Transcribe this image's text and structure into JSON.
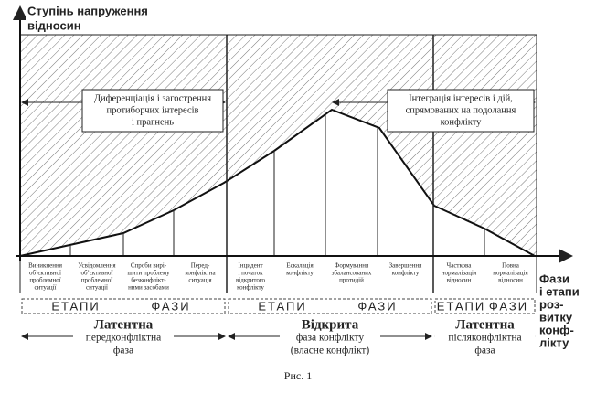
{
  "axis": {
    "y_label": [
      "Ступінь напруження",
      "відносин"
    ],
    "x_label": [
      "Фази",
      "і етапи",
      "роз-",
      "витку",
      "конф-",
      "лікту"
    ]
  },
  "annotations": [
    {
      "lines": [
        "Диференціація і загострення",
        "протиборчих інтересів",
        "і прагнень"
      ]
    },
    {
      "lines": [
        "Інтеграція інтересів і дій,",
        "спрямованих на подолання",
        "конфлікту"
      ]
    }
  ],
  "stages": [
    {
      "lines": [
        "Виникнення",
        "об’єктивної",
        "проблемної",
        "ситуації"
      ]
    },
    {
      "lines": [
        "Усвідомлення",
        "об’єктивної",
        "проблемної",
        "ситуації"
      ]
    },
    {
      "lines": [
        "Спроби вирі-",
        "шити проблему",
        "безконфлікт-",
        "ними засобами"
      ]
    },
    {
      "lines": [
        "Перед-",
        "конфліктна",
        "ситуація"
      ]
    },
    {
      "lines": [
        "Інцидент",
        "і початок",
        "відкритого",
        "конфлікту"
      ]
    },
    {
      "lines": [
        "Ескалація",
        "конфлікту"
      ]
    },
    {
      "lines": [
        "Формування",
        "збалансованих",
        "протидій"
      ]
    },
    {
      "lines": [
        "Завершення",
        "конфлікту"
      ]
    },
    {
      "lines": [
        "Часткова",
        "нормалізація",
        "відносин"
      ]
    },
    {
      "lines": [
        "Повна",
        "нормалізація",
        "відносин"
      ]
    }
  ],
  "phases": [
    {
      "band": [
        "ЕТАПИ",
        "ФАЗИ"
      ],
      "name": "Латентна",
      "description": [
        "передконфліктна",
        "фаза"
      ]
    },
    {
      "band": [
        "ЕТАПИ",
        "ФАЗИ"
      ],
      "name": "Відкрита",
      "description": [
        "фаза конфлікту",
        "(власне конфлікт)"
      ]
    },
    {
      "band": [
        "ЕТАПИ",
        "ФАЗИ"
      ],
      "name": "Латентна",
      "description": [
        "післяконфліктна",
        "фаза"
      ]
    }
  ],
  "caption": "Рис. 1"
}
